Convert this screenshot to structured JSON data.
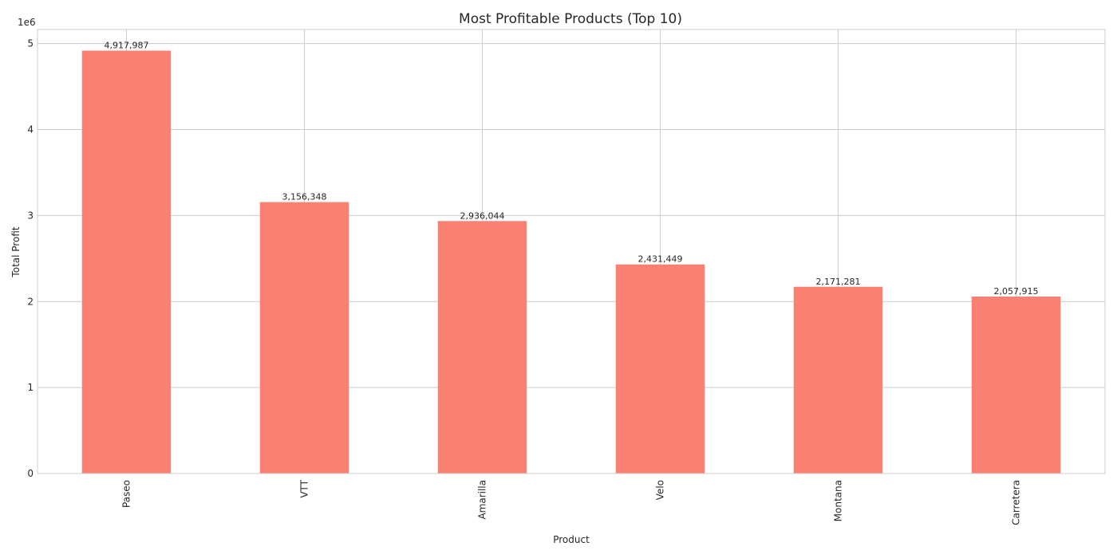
{
  "chart_data": {
    "type": "bar",
    "title": "Most Profitable Products (Top 10)",
    "xlabel": "Product",
    "ylabel": "Total Profit",
    "y_scale_label": "1e6",
    "categories": [
      "Paseo",
      "VTT",
      "Amarilla",
      "Velo",
      "Montana",
      "Carretera"
    ],
    "values": [
      4917987,
      3156348,
      2936044,
      2431449,
      2171281,
      2057915
    ],
    "data_labels": [
      "4,917,987",
      "3,156,348",
      "2,936,044",
      "2,431,449",
      "2,171,281",
      "2,057,915"
    ],
    "ylim": [
      0,
      5163886
    ],
    "y_ticks": [
      0,
      1000000,
      2000000,
      3000000,
      4000000,
      5000000
    ],
    "y_tick_labels": [
      "0",
      "1",
      "2",
      "3",
      "4",
      "5"
    ],
    "grid": true,
    "bar_color": "#fa8072",
    "grid_color": "#cccccc",
    "text_color": "#262626"
  }
}
